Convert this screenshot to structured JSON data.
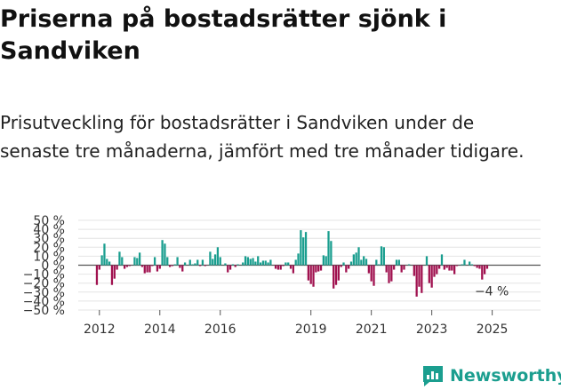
{
  "title": "Priserna på bostadsrätter sjönk i Sandviken",
  "subtitle": "Prisutveckling för bostadsrätter i Sandviken under de senaste tre månaderna, jämfört med tre månader tidigare.",
  "brand": {
    "name": "Newsworthy",
    "color": "#1b9e8f"
  },
  "colors": {
    "positive": "#1a9e8f",
    "negative": "#a0114f"
  },
  "chart_data": {
    "type": "bar",
    "title": "",
    "xlabel": "",
    "ylabel": "",
    "ylim": [
      -50,
      50
    ],
    "yticks": [
      50,
      40,
      30,
      20,
      10,
      0,
      -10,
      -20,
      -30,
      -40,
      -50
    ],
    "ytick_labels": [
      "50 %",
      "40 %",
      "30 %",
      "20 %",
      "10 %",
      "0 %",
      "−10 %",
      "−20 %",
      "−30 %",
      "−40 %",
      "−50 %"
    ],
    "x_range": [
      2011.3,
      2026.6
    ],
    "xticks": [
      2012,
      2014,
      2016,
      2019,
      2021,
      2023,
      2025
    ],
    "xtick_labels": [
      "2012",
      "2014",
      "2016",
      "2019",
      "2021",
      "2023",
      "2025"
    ],
    "bar_width_months": 1,
    "start": "2011-12",
    "values": [
      -22,
      -5,
      11,
      24,
      7,
      4,
      -22,
      -15,
      -5,
      15,
      9,
      -4,
      -2,
      -1,
      0,
      9,
      8,
      14,
      -2,
      -9,
      -8,
      -8,
      -1,
      9,
      -7,
      -4,
      28,
      24,
      9,
      -2,
      -1,
      1,
      9,
      -3,
      -7,
      3,
      0,
      6,
      1,
      2,
      6,
      -1,
      6,
      -1,
      0,
      15,
      7,
      12,
      20,
      9,
      0,
      2,
      -8,
      -5,
      1,
      -2,
      1,
      0,
      3,
      10,
      9,
      7,
      8,
      4,
      10,
      3,
      5,
      5,
      3,
      6,
      0,
      -4,
      -5,
      -5,
      -1,
      3,
      3,
      -4,
      -9,
      6,
      13,
      39,
      31,
      37,
      -17,
      -21,
      -24,
      -8,
      -7,
      -6,
      11,
      10,
      38,
      27,
      -26,
      -22,
      -17,
      -2,
      3,
      -8,
      -4,
      4,
      12,
      14,
      20,
      6,
      10,
      7,
      -9,
      -18,
      -23,
      6,
      1,
      21,
      20,
      -8,
      -20,
      -18,
      -5,
      6,
      6,
      -8,
      -5,
      0,
      1,
      0,
      -12,
      -35,
      -24,
      -31,
      0,
      10,
      -20,
      -25,
      -13,
      -10,
      -4,
      12,
      -5,
      -3,
      -6,
      -6,
      -10,
      -1,
      0,
      1,
      6,
      0,
      4,
      1,
      -1,
      -3,
      -4,
      -16,
      -10,
      -4
    ],
    "annotations": [
      {
        "label": "−4 %",
        "value": -4,
        "at": "last"
      }
    ]
  }
}
